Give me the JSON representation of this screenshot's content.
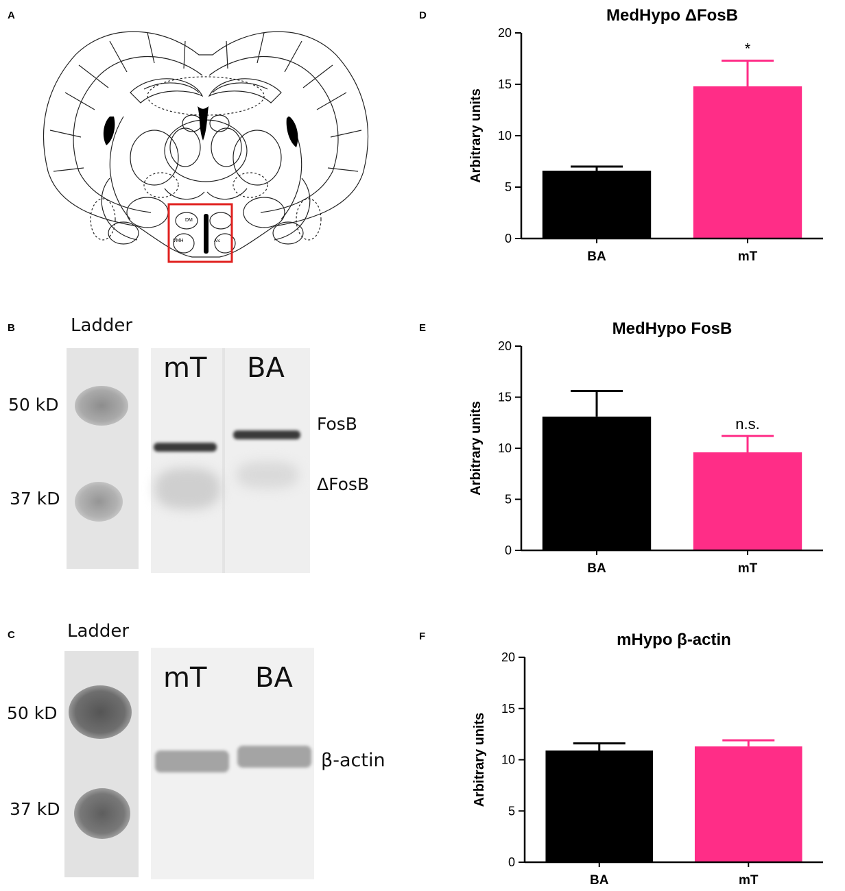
{
  "panels": {
    "A": {
      "letter": "A",
      "labels": [
        "DM",
        "VMH",
        "Arc"
      ]
    },
    "B": {
      "letter": "B",
      "ladder_label": "Ladder",
      "marker_top": "50 kD",
      "marker_bottom": "37 kD",
      "lane_1": "mT",
      "lane_2": "BA",
      "band_upper": "FosB",
      "band_lower": "ΔFosB"
    },
    "C": {
      "letter": "C",
      "ladder_label": "Ladder",
      "marker_top": "50 kD",
      "marker_bottom": "37 kD",
      "lane_1": "mT",
      "lane_2": "BA",
      "band": "β-actin"
    },
    "D": {
      "letter": "D"
    },
    "E": {
      "letter": "E"
    },
    "F": {
      "letter": "F"
    }
  },
  "colors": {
    "BA": "#000000",
    "mT": "#ff2d87",
    "outline": "#e0201e"
  },
  "chart_data": [
    {
      "type": "bar",
      "title": "MedHypo ΔFosB",
      "ylabel": "Arbitrary units",
      "ylim": [
        0,
        20
      ],
      "yticks": [
        0,
        5,
        10,
        15,
        20
      ],
      "categories": [
        "BA",
        "mT"
      ],
      "values": [
        6.6,
        14.8
      ],
      "errors": [
        0.4,
        2.5
      ],
      "annotations": [
        "",
        "*"
      ]
    },
    {
      "type": "bar",
      "title": "MedHypo FosB",
      "ylabel": "Arbitrary units",
      "ylim": [
        0,
        20
      ],
      "yticks": [
        0,
        5,
        10,
        15,
        20
      ],
      "categories": [
        "BA",
        "mT"
      ],
      "values": [
        13.1,
        9.6
      ],
      "errors": [
        2.5,
        1.6
      ],
      "annotations": [
        "",
        "n.s."
      ]
    },
    {
      "type": "bar",
      "title": "mHypo β-actin",
      "ylabel": "Arbitrary units",
      "ylim": [
        0,
        20
      ],
      "yticks": [
        0,
        5,
        10,
        15,
        20
      ],
      "categories": [
        "BA",
        "mT"
      ],
      "values": [
        10.9,
        11.3
      ],
      "errors": [
        0.7,
        0.6
      ],
      "annotations": [
        "",
        ""
      ]
    }
  ]
}
